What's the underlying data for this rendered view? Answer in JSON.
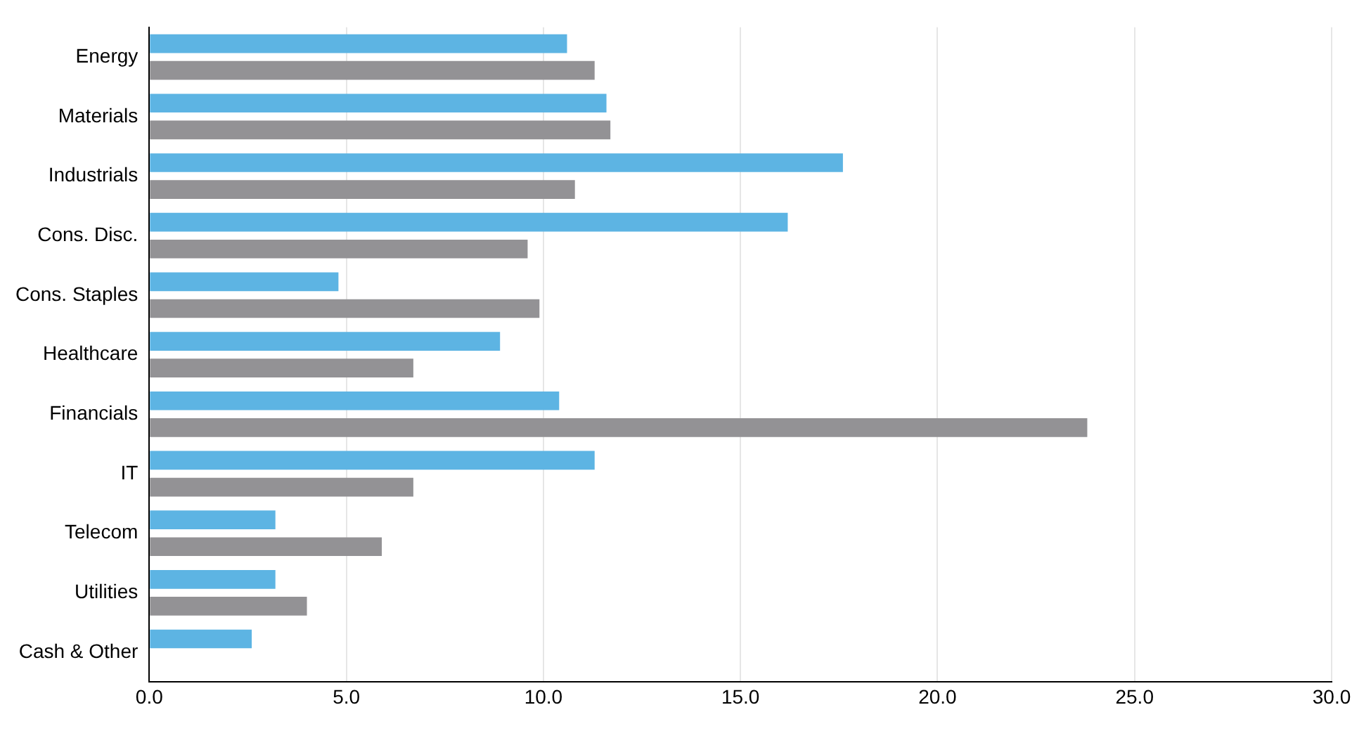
{
  "chart_data": {
    "type": "bar",
    "orientation": "horizontal",
    "categories": [
      "Energy",
      "Materials",
      "Industrials",
      "Cons. Disc.",
      "Cons. Staples",
      "Healthcare",
      "Financials",
      "IT",
      "Telecom",
      "Utilities",
      "Cash & Other"
    ],
    "series": [
      {
        "color": "#5db4e3",
        "values": [
          10.6,
          11.6,
          17.6,
          16.2,
          4.8,
          8.9,
          10.4,
          11.3,
          3.2,
          3.2,
          2.6
        ]
      },
      {
        "color": "#939295",
        "values": [
          11.3,
          11.7,
          10.8,
          9.6,
          9.9,
          6.7,
          23.8,
          6.7,
          5.9,
          4.0,
          null
        ]
      }
    ],
    "xlim": [
      0,
      30
    ],
    "xticks": [
      {
        "value": 0,
        "label": "0.0"
      },
      {
        "value": 5,
        "label": "5.0"
      },
      {
        "value": 10,
        "label": "10.0"
      },
      {
        "value": 15,
        "label": "15.0"
      },
      {
        "value": 20,
        "label": "20.0"
      },
      {
        "value": 25,
        "label": "25.0"
      },
      {
        "value": 30,
        "label": "30.0"
      }
    ],
    "grid": "x",
    "legend": false
  }
}
